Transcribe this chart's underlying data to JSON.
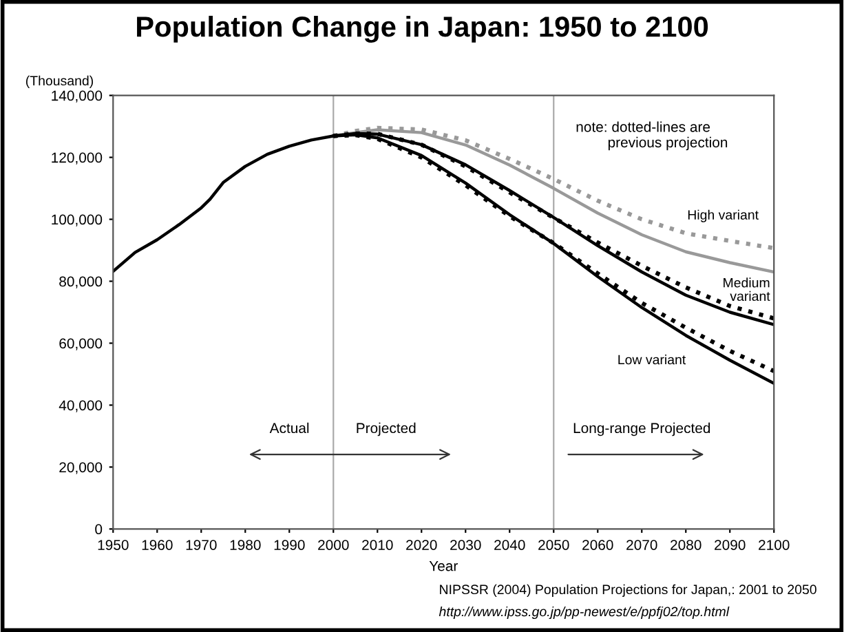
{
  "chart_data": {
    "type": "line",
    "title": "Population Change in Japan: 1950 to 2100",
    "xlabel": "Year",
    "ylabel": "(Thousand)",
    "xlim": [
      1950,
      2100
    ],
    "xticks": [
      1950,
      1960,
      1970,
      1980,
      1990,
      2000,
      2010,
      2020,
      2030,
      2040,
      2050,
      2060,
      2070,
      2080,
      2090,
      2100
    ],
    "ylim": [
      0,
      140000
    ],
    "yticks": [
      {
        "value": 0,
        "label": "0"
      },
      {
        "value": 20000,
        "label": "20,000"
      },
      {
        "value": 40000,
        "label": "40,000"
      },
      {
        "value": 60000,
        "label": "60,000"
      },
      {
        "value": 80000,
        "label": "80,000"
      },
      {
        "value": 100000,
        "label": "100,000"
      },
      {
        "value": 120000,
        "label": "120,000"
      },
      {
        "value": 140000,
        "label": "140,000"
      }
    ],
    "grid": false,
    "legend": false,
    "marker": "none",
    "series": [
      {
        "color": "#999999",
        "line_style": "dotted",
        "x": [
          2000,
          2005,
          2010,
          2020,
          2030,
          2040,
          2050,
          2060,
          2070,
          2080,
          2090,
          2100
        ],
        "values": [
          126900,
          128500,
          129500,
          129000,
          125500,
          119500,
          113000,
          106000,
          100000,
          95500,
          93000,
          90700
        ]
      },
      {
        "name": "High variant",
        "color": "#999999",
        "line_style": "solid",
        "x": [
          2000,
          2005,
          2010,
          2020,
          2030,
          2040,
          2050,
          2060,
          2070,
          2080,
          2090,
          2100
        ],
        "values": [
          126900,
          128000,
          128900,
          128000,
          124000,
          117500,
          110000,
          102000,
          95000,
          89500,
          86000,
          83000
        ]
      },
      {
        "color": "#000000",
        "line_style": "dotted",
        "x": [
          2000,
          2005,
          2010,
          2020,
          2030,
          2040,
          2050,
          2060,
          2070,
          2080,
          2090,
          2100
        ],
        "values": [
          126900,
          127700,
          127600,
          124100,
          117100,
          108700,
          100500,
          92500,
          85000,
          78000,
          72000,
          68000
        ]
      },
      {
        "name": "Medium\nvariant",
        "color": "#000000",
        "line_style": "solid",
        "x": [
          1950,
          1955,
          1960,
          1965,
          1970,
          1972,
          1975,
          1980,
          1985,
          1990,
          1995,
          2000,
          2005,
          2010,
          2020,
          2030,
          2040,
          2050,
          2060,
          2070,
          2080,
          2090,
          2100
        ],
        "values": [
          83200,
          89300,
          93400,
          98300,
          103700,
          106500,
          111900,
          117100,
          121000,
          123600,
          125600,
          126900,
          127700,
          127500,
          124100,
          117600,
          109300,
          100600,
          91500,
          83000,
          75500,
          70000,
          66000
        ]
      },
      {
        "color": "#000000",
        "line_style": "dotted",
        "x": [
          2000,
          2005,
          2010,
          2020,
          2030,
          2040,
          2050,
          2060,
          2070,
          2080,
          2090,
          2100
        ],
        "values": [
          126900,
          127200,
          126000,
          120000,
          111000,
          101000,
          92300,
          82500,
          73000,
          65000,
          57500,
          51000
        ]
      },
      {
        "name": "Low variant",
        "color": "#000000",
        "line_style": "solid",
        "x": [
          2000,
          2005,
          2010,
          2020,
          2030,
          2040,
          2050,
          2060,
          2070,
          2080,
          2090,
          2100
        ],
        "values": [
          126900,
          127300,
          126300,
          120600,
          111700,
          101500,
          92200,
          81500,
          71500,
          62500,
          54500,
          47000
        ]
      }
    ],
    "ref_lines": [
      {
        "axis": "x",
        "value": 2000,
        "color": "#aaaaaa",
        "line_style": "solid"
      },
      {
        "axis": "x",
        "value": 2050,
        "color": "#aaaaaa",
        "line_style": "solid"
      }
    ],
    "annotations": [
      "Actual",
      "Projected",
      "Long-range Projected",
      "note: dotted-lines are\n        previous projection",
      "NIPSSR (2004) Population Projections for Japan,: 2001 to 2050",
      "http://www.ipss.go.jp/pp-newest/e/ppfj02/top.html"
    ]
  }
}
